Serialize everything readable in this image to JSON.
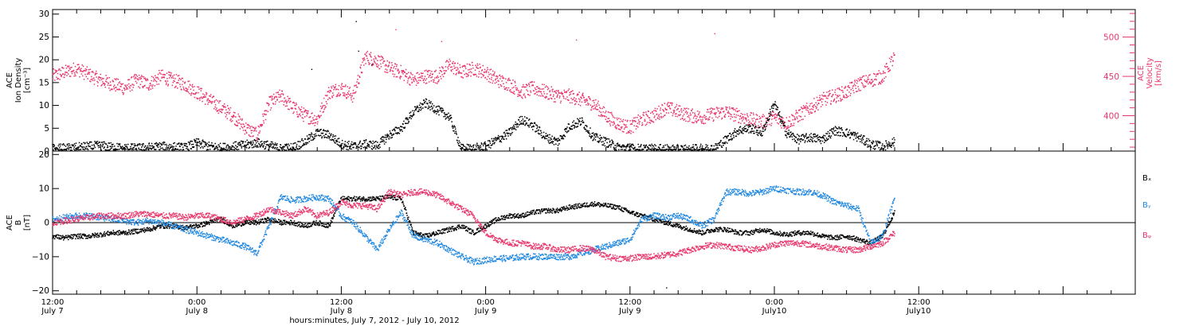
{
  "chart_data": [
    {
      "type": "scatter",
      "panel": "ion-density-velocity",
      "ylabel_lines": [
        "ACE",
        "Ion Density",
        "[cm⁻³]"
      ],
      "ylim": [
        0,
        31
      ],
      "yticks": [
        "0",
        "5",
        "10",
        "15",
        "20",
        "25",
        "30"
      ],
      "y2label_lines": [
        "ACE",
        "Velocity",
        "[km/s]"
      ],
      "y2lim": [
        355,
        535
      ],
      "y2ticks": [
        "400",
        "450",
        "500"
      ],
      "colors": {
        "density": "#000000",
        "velocity": "#e8366b"
      },
      "series": [
        {
          "name": "",
          "axis": "left",
          "color": "#000000",
          "x": [
            0,
            1,
            2,
            3,
            4,
            5,
            6,
            7,
            8,
            9,
            10,
            11,
            12,
            13,
            14,
            15,
            16,
            17,
            18,
            19,
            20,
            21,
            22,
            23,
            24,
            25,
            26,
            27,
            28,
            29,
            30,
            31,
            32,
            33,
            34,
            35,
            36,
            37,
            38,
            39,
            40,
            41,
            42,
            43,
            44,
            45,
            46,
            47,
            48,
            49,
            50,
            51,
            52,
            53,
            54,
            55,
            56,
            57,
            58,
            59,
            60,
            61,
            62,
            63,
            64,
            65,
            66,
            67,
            68,
            69,
            70
          ],
          "y": [
            0.5,
            0.6,
            0.8,
            1.0,
            1.2,
            0.8,
            0.7,
            0.6,
            0.8,
            1.0,
            0.9,
            0.7,
            1.8,
            1.0,
            0.7,
            1.0,
            1.3,
            1.8,
            1.2,
            0.5,
            0.8,
            2.0,
            4.0,
            3.5,
            1.5,
            1.0,
            1.5,
            1.2,
            3.5,
            5.0,
            8.5,
            10.5,
            9.0,
            7.5,
            0.5,
            0.6,
            1.0,
            2.5,
            4.0,
            7.0,
            5.5,
            3.0,
            2.0,
            5.5,
            6.5,
            3.0,
            2.0,
            0.8,
            0.6,
            0.5,
            0.5,
            0.4,
            0.4,
            0.4,
            0.5,
            0.5,
            2.5,
            4.5,
            5.0,
            4.0,
            10.5,
            4.0,
            2.5,
            3.0,
            2.5,
            4.5,
            4.0,
            3.0,
            1.5,
            1.0,
            2.0
          ],
          "sparse_points": [
            [
              21.5,
              18
            ],
            [
              25.2,
              28.5
            ],
            [
              25.4,
              22
            ],
            [
              26.5,
              19
            ]
          ]
        },
        {
          "name": "",
          "axis": "right",
          "color": "#e8366b",
          "x": [
            0,
            1,
            2,
            3,
            4,
            5,
            6,
            7,
            8,
            9,
            10,
            11,
            12,
            13,
            14,
            15,
            16,
            17,
            18,
            19,
            20,
            21,
            22,
            23,
            24,
            25,
            26,
            27,
            28,
            29,
            30,
            31,
            32,
            33,
            34,
            35,
            36,
            37,
            38,
            39,
            40,
            41,
            42,
            43,
            44,
            45,
            46,
            47,
            48,
            49,
            50,
            51,
            52,
            53,
            54,
            55,
            56,
            57,
            58,
            59,
            60,
            61,
            62,
            63,
            64,
            65,
            66,
            67,
            68,
            69,
            70
          ],
          "y": [
            450,
            455,
            460,
            452,
            445,
            440,
            435,
            445,
            440,
            450,
            445,
            440,
            430,
            420,
            410,
            400,
            385,
            375,
            415,
            425,
            410,
            400,
            395,
            430,
            435,
            425,
            475,
            470,
            460,
            455,
            445,
            450,
            450,
            465,
            455,
            460,
            455,
            445,
            440,
            430,
            435,
            430,
            425,
            425,
            420,
            415,
            400,
            390,
            385,
            395,
            400,
            410,
            405,
            400,
            398,
            402,
            405,
            400,
            395,
            392,
            398,
            390,
            400,
            410,
            420,
            425,
            430,
            440,
            445,
            450,
            475
          ],
          "sparse_points": [
            [
              28.5,
              510
            ],
            [
              32.3,
              495
            ],
            [
              43.5,
              497
            ],
            [
              55,
              505
            ]
          ]
        }
      ]
    },
    {
      "type": "scatter",
      "panel": "magnetic-field",
      "ylabel_lines": [
        "ACE",
        "B",
        "[nT]"
      ],
      "ylim": [
        -21,
        21
      ],
      "yticks": [
        "−20",
        "−10",
        "0",
        "10",
        "20"
      ],
      "zero_line": true,
      "series": [
        {
          "name": "Bₓ",
          "color": "#000000",
          "x": [
            0,
            1,
            2,
            3,
            4,
            5,
            6,
            7,
            8,
            9,
            10,
            11,
            12,
            13,
            14,
            15,
            16,
            17,
            18,
            19,
            20,
            21,
            22,
            23,
            24,
            25,
            26,
            27,
            28,
            29,
            30,
            31,
            32,
            33,
            34,
            35,
            36,
            37,
            38,
            39,
            40,
            41,
            42,
            43,
            44,
            45,
            46,
            47,
            48,
            49,
            50,
            51,
            52,
            53,
            54,
            55,
            56,
            57,
            58,
            59,
            60,
            61,
            62,
            63,
            64,
            65,
            66,
            67,
            68,
            69,
            70
          ],
          "y": [
            -4,
            -4.5,
            -4,
            -4,
            -3.5,
            -3,
            -3,
            -2.5,
            -2,
            -1,
            -1,
            -1.5,
            -1,
            0,
            1,
            -1,
            0,
            0,
            1,
            0,
            0,
            -1,
            0,
            -1,
            7,
            7,
            7,
            7,
            7.5,
            7,
            -3,
            -4,
            -3,
            -2,
            -1,
            -3,
            -1,
            1,
            2,
            2,
            3,
            3.5,
            3.5,
            4.5,
            5,
            5.5,
            5,
            4.5,
            3,
            2,
            1,
            0,
            -1,
            -2,
            -3,
            -2,
            -2,
            -3,
            -3,
            -2,
            -3,
            -3.5,
            -3,
            -3,
            -4,
            -4.5,
            -4,
            -5,
            -6,
            -4,
            3
          ],
          "sparse_points": [
            [
              51,
              -19
            ]
          ]
        },
        {
          "name": "Bᵧ",
          "color": "#2088e0",
          "x": [
            0,
            1,
            2,
            3,
            4,
            5,
            6,
            7,
            8,
            9,
            10,
            11,
            12,
            13,
            14,
            15,
            16,
            17,
            18,
            19,
            20,
            21,
            22,
            23,
            24,
            25,
            26,
            27,
            28,
            29,
            30,
            31,
            32,
            33,
            34,
            35,
            36,
            37,
            38,
            39,
            40,
            41,
            42,
            43,
            44,
            45,
            46,
            47,
            48,
            49,
            50,
            51,
            52,
            53,
            54,
            55,
            56,
            57,
            58,
            59,
            60,
            61,
            62,
            63,
            64,
            65,
            66,
            67,
            68,
            69,
            70
          ],
          "y": [
            1,
            1.5,
            2,
            2,
            1.5,
            1,
            0.5,
            0,
            0.5,
            0,
            -1,
            -2,
            -3,
            -4,
            -5,
            -6,
            -7,
            -9,
            -1,
            7.5,
            6.5,
            7,
            7.5,
            7,
            2,
            0,
            -4,
            -8,
            -2,
            3,
            -4,
            -5,
            -6,
            -8,
            -10,
            -11.5,
            -11,
            -10.5,
            -10.5,
            -10,
            -10,
            -10,
            -10,
            -10,
            -9,
            -8,
            -7,
            -6,
            -5,
            1,
            2,
            1.5,
            2,
            1,
            -1,
            1,
            9,
            9,
            8.5,
            9,
            10,
            9.5,
            9,
            9,
            8,
            6,
            5,
            4,
            -6,
            -4,
            7
          ],
          "sparse_points": []
        },
        {
          "name": "Bᵩ",
          "color": "#e8366b",
          "x": [
            0,
            1,
            2,
            3,
            4,
            5,
            6,
            7,
            8,
            9,
            10,
            11,
            12,
            13,
            14,
            15,
            16,
            17,
            18,
            19,
            20,
            21,
            22,
            23,
            24,
            25,
            26,
            27,
            28,
            29,
            30,
            31,
            32,
            33,
            34,
            35,
            36,
            37,
            38,
            39,
            40,
            41,
            42,
            43,
            44,
            45,
            46,
            47,
            48,
            49,
            50,
            51,
            52,
            53,
            54,
            55,
            56,
            57,
            58,
            59,
            60,
            61,
            62,
            63,
            64,
            65,
            66,
            67,
            68,
            69,
            70
          ],
          "y": [
            0,
            0.5,
            1,
            1.5,
            2,
            2,
            2,
            2.5,
            2.5,
            2,
            2,
            1.5,
            2,
            2,
            1,
            0,
            1,
            2,
            4,
            3,
            2,
            4,
            2,
            3,
            6,
            5,
            5,
            4,
            9,
            8,
            9,
            9,
            8,
            6,
            4,
            2,
            -3,
            -5,
            -6,
            -6,
            -7,
            -7,
            -8,
            -8,
            -7.5,
            -8,
            -10,
            -10.5,
            -10.5,
            -10,
            -10,
            -9.5,
            -9,
            -8,
            -7,
            -6.5,
            -7,
            -7.5,
            -8,
            -7.5,
            -6.5,
            -6,
            -6,
            -6.5,
            -7,
            -7.5,
            -8,
            -8,
            -7,
            -6,
            -3
          ],
          "sparse_points": []
        }
      ]
    }
  ],
  "x_axis": {
    "min": 0,
    "max": 90,
    "units": "hours",
    "tick_labels": [
      {
        "x": 0,
        "line1": "12:00",
        "line2": "July 7"
      },
      {
        "x": 12,
        "line1": "0:00",
        "line2": "July 8"
      },
      {
        "x": 24,
        "line1": "12:00",
        "line2": "July 8"
      },
      {
        "x": 36,
        "line1": "0:00",
        "line2": "July 9"
      },
      {
        "x": 48,
        "line1": "12:00",
        "line2": "July 9"
      },
      {
        "x": 60,
        "line1": "0:00",
        "line2": "July10"
      },
      {
        "x": 72,
        "line1": "12:00",
        "line2": "July10"
      }
    ],
    "label": "hours:minutes, July  7, 2012 - July 10, 2012"
  }
}
